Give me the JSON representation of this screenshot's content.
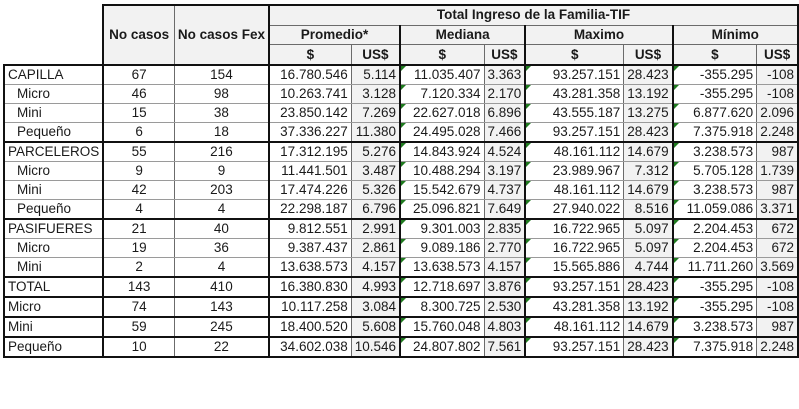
{
  "header": {
    "col_casos": "No casos",
    "col_casos_fex": "No casos Fex",
    "group_title": "Total Ingreso de la Familia-TIF",
    "stats": [
      {
        "label": "Promedio*",
        "currency": [
          "$",
          "US$"
        ]
      },
      {
        "label": "Mediana",
        "currency": [
          "$",
          "US$"
        ]
      },
      {
        "label": "Maximo",
        "currency": [
          "$",
          "US$"
        ]
      },
      {
        "label": "Mínimo",
        "currency": [
          "$",
          "US$"
        ]
      }
    ]
  },
  "rows": [
    {
      "label": "CAPILLA",
      "casos": "67",
      "fex": "154",
      "prom_cop": "16.780.546",
      "prom_usd": "5.114",
      "med_cop": "11.035.407",
      "med_usd": "3.363",
      "max_cop": "93.257.151",
      "max_usd": "28.423",
      "min_cop": "-355.295",
      "min_usd": "-108"
    },
    {
      "label": "Micro",
      "casos": "46",
      "fex": "98",
      "prom_cop": "10.263.741",
      "prom_usd": "3.128",
      "med_cop": "7.120.334",
      "med_usd": "2.170",
      "max_cop": "43.281.358",
      "max_usd": "13.192",
      "min_cop": "-355.295",
      "min_usd": "-108"
    },
    {
      "label": "Mini",
      "casos": "15",
      "fex": "38",
      "prom_cop": "23.850.142",
      "prom_usd": "7.269",
      "med_cop": "22.627.018",
      "med_usd": "6.896",
      "max_cop": "43.555.187",
      "max_usd": "13.275",
      "min_cop": "6.877.620",
      "min_usd": "2.096"
    },
    {
      "label": "Pequeño",
      "casos": "6",
      "fex": "18",
      "prom_cop": "37.336.227",
      "prom_usd": "11.380",
      "med_cop": "24.495.028",
      "med_usd": "7.466",
      "max_cop": "93.257.151",
      "max_usd": "28.423",
      "min_cop": "7.375.918",
      "min_usd": "2.248"
    },
    {
      "label": "PARCELEROS",
      "casos": "55",
      "fex": "216",
      "prom_cop": "17.312.195",
      "prom_usd": "5.276",
      "med_cop": "14.843.924",
      "med_usd": "4.524",
      "max_cop": "48.161.112",
      "max_usd": "14.679",
      "min_cop": "3.238.573",
      "min_usd": "987"
    },
    {
      "label": "Micro",
      "casos": "9",
      "fex": "9",
      "prom_cop": "11.441.501",
      "prom_usd": "3.487",
      "med_cop": "10.488.294",
      "med_usd": "3.197",
      "max_cop": "23.989.967",
      "max_usd": "7.312",
      "min_cop": "5.705.128",
      "min_usd": "1.739"
    },
    {
      "label": "Mini",
      "casos": "42",
      "fex": "203",
      "prom_cop": "17.474.226",
      "prom_usd": "5.326",
      "med_cop": "15.542.679",
      "med_usd": "4.737",
      "max_cop": "48.161.112",
      "max_usd": "14.679",
      "min_cop": "3.238.573",
      "min_usd": "987"
    },
    {
      "label": "Pequeño",
      "casos": "4",
      "fex": "4",
      "prom_cop": "22.298.187",
      "prom_usd": "6.796",
      "med_cop": "25.096.821",
      "med_usd": "7.649",
      "max_cop": "27.940.022",
      "max_usd": "8.516",
      "min_cop": "11.059.086",
      "min_usd": "3.371"
    },
    {
      "label": "PASIFUERES",
      "casos": "21",
      "fex": "40",
      "prom_cop": "9.812.551",
      "prom_usd": "2.991",
      "med_cop": "9.301.003",
      "med_usd": "2.835",
      "max_cop": "16.722.965",
      "max_usd": "5.097",
      "min_cop": "2.204.453",
      "min_usd": "672"
    },
    {
      "label": "Micro",
      "casos": "19",
      "fex": "36",
      "prom_cop": "9.387.437",
      "prom_usd": "2.861",
      "med_cop": "9.089.186",
      "med_usd": "2.770",
      "max_cop": "16.722.965",
      "max_usd": "5.097",
      "min_cop": "2.204.453",
      "min_usd": "672"
    },
    {
      "label": "Mini",
      "casos": "2",
      "fex": "4",
      "prom_cop": "13.638.573",
      "prom_usd": "4.157",
      "med_cop": "13.638.573",
      "med_usd": "4.157",
      "max_cop": "15.565.886",
      "max_usd": "4.744",
      "min_cop": "11.711.260",
      "min_usd": "3.569"
    },
    {
      "label": "TOTAL",
      "casos": "143",
      "fex": "410",
      "prom_cop": "16.380.830",
      "prom_usd": "4.993",
      "med_cop": "12.718.697",
      "med_usd": "3.876",
      "max_cop": "93.257.151",
      "max_usd": "28.423",
      "min_cop": "-355.295",
      "min_usd": "-108"
    },
    {
      "label": "Micro",
      "casos": "74",
      "fex": "143",
      "prom_cop": "10.117.258",
      "prom_usd": "3.084",
      "med_cop": "8.300.725",
      "med_usd": "2.530",
      "max_cop": "43.281.358",
      "max_usd": "13.192",
      "min_cop": "-355.295",
      "min_usd": "-108"
    },
    {
      "label": "Mini",
      "casos": "59",
      "fex": "245",
      "prom_cop": "18.400.520",
      "prom_usd": "5.608",
      "med_cop": "15.760.048",
      "med_usd": "4.803",
      "max_cop": "48.161.112",
      "max_usd": "14.679",
      "min_cop": "3.238.573",
      "min_usd": "987"
    },
    {
      "label": "Pequeño",
      "casos": "10",
      "fex": "22",
      "prom_cop": "34.602.038",
      "prom_usd": "10.546",
      "med_cop": "24.807.802",
      "med_usd": "7.561",
      "max_cop": "93.257.151",
      "max_usd": "28.423",
      "min_cop": "7.375.918",
      "min_usd": "2.248"
    }
  ]
}
